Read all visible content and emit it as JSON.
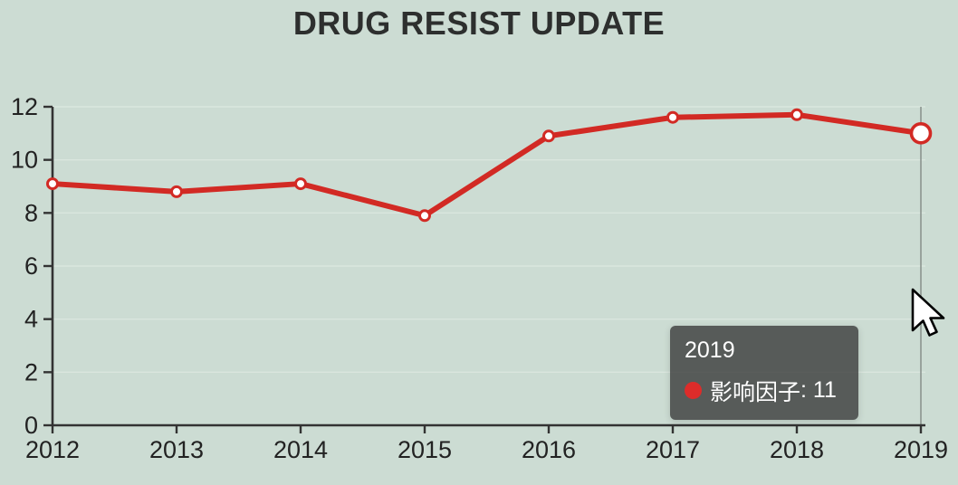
{
  "title": "DRUG RESIST UPDATE",
  "chart_data": {
    "type": "line",
    "categories": [
      "2012",
      "2013",
      "2014",
      "2015",
      "2016",
      "2017",
      "2018",
      "2019"
    ],
    "series": [
      {
        "name": "影响因子",
        "values": [
          9.1,
          8.8,
          9.1,
          7.9,
          10.9,
          11.6,
          11.7,
          11
        ]
      }
    ],
    "title": "DRUG RESIST UPDATE",
    "xlabel": "",
    "ylabel": "",
    "ylim": [
      0,
      12
    ],
    "ytick_step": 2,
    "grid": true,
    "legend": "none",
    "active_index": 7,
    "colors": {
      "line": "#d22a24",
      "point_fill": "#ffffff",
      "axis": "#333333",
      "label": "#222222",
      "grid": "#dae6de",
      "pointer_line": "#8b948f",
      "background": "#ccdcd3",
      "tooltip_dot": "#dd2c2a"
    }
  },
  "tooltip": {
    "title": "2019",
    "series": "影响因子",
    "separator": ": ",
    "value": "11"
  }
}
